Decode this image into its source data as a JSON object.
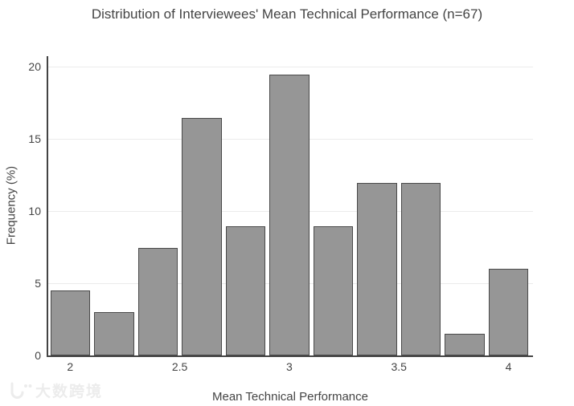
{
  "title": "Distribution of Interviewees' Mean Technical Performance (n=67)",
  "watermark": {
    "text": "大数跨境"
  },
  "chart_data": {
    "type": "bar",
    "subtype": "histogram",
    "title": "Distribution of Interviewees' Mean Technical Performance (n=67)",
    "xlabel": "Mean Technical Performance",
    "ylabel": "Frequency (%)",
    "n": 67,
    "bin_centers": [
      2.0,
      2.2,
      2.4,
      2.6,
      2.8,
      3.0,
      3.2,
      3.4,
      3.6,
      3.8,
      4.0
    ],
    "bin_width": 0.2,
    "values": [
      4.48,
      2.99,
      7.46,
      16.42,
      8.96,
      19.4,
      8.96,
      11.94,
      11.94,
      1.49,
      5.97
    ],
    "x_tick_values": [
      2,
      2.5,
      3,
      3.5,
      4
    ],
    "x_ticks": [
      "2",
      "2.5",
      "3",
      "3.5",
      "4"
    ],
    "y_tick_values": [
      0,
      5,
      10,
      15,
      20
    ],
    "y_ticks": [
      "0",
      "5",
      "10",
      "15",
      "20"
    ],
    "xlim": [
      1.9,
      4.112
    ],
    "ylim": [
      0,
      20.7
    ],
    "grid": true,
    "legend": "none",
    "colors": {
      "bar_fill": "#969696",
      "bar_stroke": "#4a4a4a",
      "axis_line": "#444444",
      "grid_line": "#ebebeb",
      "text": "#444444",
      "background": "#ffffff",
      "watermark": "#ececec"
    }
  }
}
